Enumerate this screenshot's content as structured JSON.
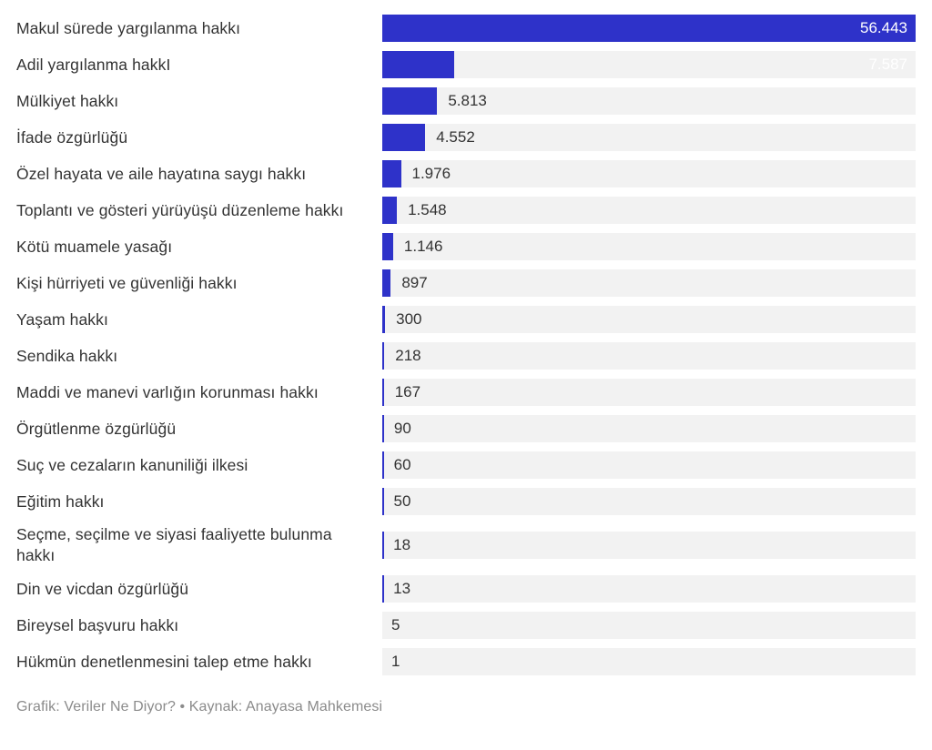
{
  "chart_data": {
    "type": "bar",
    "orientation": "horizontal",
    "title": "",
    "xlabel": "",
    "ylabel": "",
    "xlim": [
      0,
      56443
    ],
    "grid": false,
    "legend": "none",
    "bar_color": "#2e32c9",
    "track_color": "#f2f2f2",
    "categories": [
      "Makul sürede yargılanma hakkı",
      "Adil yargılanma hakkI",
      "Mülkiyet hakkı",
      "İfade özgürlüğü",
      "Özel hayata ve aile hayatına saygı hakkı",
      "Toplantı ve gösteri yürüyüşü düzenleme hakkı",
      "Kötü muamele yasağı",
      "Kişi hürriyeti ve güvenliği hakkı",
      "Yaşam hakkı",
      "Sendika hakkı",
      "Maddi ve manevi varlığın korunması hakkı",
      "Örgütlenme özgürlüğü",
      "Suç ve cezaların kanuniliği ilkesi",
      "Eğitim hakkı",
      "Seçme, seçilme ve siyasi faaliyette bulunma hakkı",
      "Din ve vicdan özgürlüğü",
      "Bireysel başvuru hakkı",
      "Hükmün denetlenmesini talep etme hakkı"
    ],
    "values": [
      56443,
      7587,
      5813,
      4552,
      1976,
      1548,
      1146,
      897,
      300,
      218,
      167,
      90,
      60,
      50,
      18,
      13,
      5,
      1
    ],
    "value_labels": [
      "56.443",
      "7.587",
      "5.813",
      "4.552",
      "1.976",
      "1.548",
      "1.146",
      "897",
      "300",
      "218",
      "167",
      "90",
      "60",
      "50",
      "18",
      "13",
      "5",
      "1"
    ]
  },
  "footer": {
    "credit": "Grafik: Veriler Ne Diyor? • Kaynak: Anayasa Mahkemesi"
  }
}
